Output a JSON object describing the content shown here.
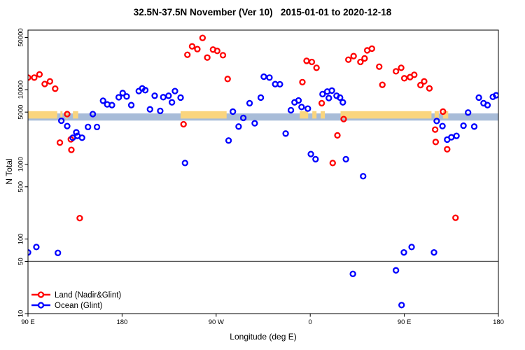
{
  "title": "32.5N-37.5N November (Ver 10)   2015-01-01 to 2020-12-18",
  "legend": {
    "entries": [
      {
        "label": "Land (Nadir&Glint)",
        "color": "#ff0000"
      },
      {
        "label": "Ocean (Glint)",
        "color": "#0000ff"
      }
    ]
  },
  "chart_data": {
    "type": "scatter",
    "title": "32.5N-37.5N November (Ver 10)   2015-01-01 to 2020-12-18",
    "xlabel": "Longitude (deg E)",
    "ylabel": "N Total",
    "y_scale": "log10",
    "ylim": [
      10,
      63000
    ],
    "y_ticks": [
      10,
      50,
      100,
      500,
      1000,
      5000,
      10000,
      50000
    ],
    "x_axis_span_deg": 450,
    "x_ticks": [
      {
        "deg": 0,
        "label": "90 E"
      },
      {
        "deg": 90,
        "label": "180"
      },
      {
        "deg": 180,
        "label": "90 W"
      },
      {
        "deg": 270,
        "label": "0"
      },
      {
        "deg": 360,
        "label": "90 E"
      },
      {
        "deg": 450,
        "label": "180"
      }
    ],
    "reference_line_y": 50,
    "reference_line_color": "#555555",
    "geo_band": {
      "description": "land/ocean strip along 32.5N-37.5N vs longitude",
      "ocean_color": "#a8bcd8",
      "land_color": "#fad57e",
      "ocean_value_range": [
        3850,
        4800
      ],
      "land_value_range": [
        4100,
        5150
      ],
      "land_segments_deg": [
        [
          0,
          28
        ],
        [
          31,
          33
        ],
        [
          36,
          38
        ],
        [
          43,
          48
        ],
        [
          146,
          190
        ],
        [
          260,
          268
        ],
        [
          272,
          276
        ],
        [
          280,
          284
        ],
        [
          299,
          386
        ],
        [
          389,
          393
        ],
        [
          397,
          402
        ]
      ]
    },
    "series": [
      {
        "name": "Land (Nadir&Glint)",
        "color": "#ff0000",
        "points": [
          [
            0,
            14500
          ],
          [
            6,
            14500
          ],
          [
            11,
            16000
          ],
          [
            16,
            11900
          ],
          [
            21,
            12900
          ],
          [
            26,
            10300
          ],
          [
            30.5,
            1950
          ],
          [
            37.5,
            4700
          ],
          [
            41,
            2160
          ],
          [
            41.5,
            1560
          ],
          [
            49.5,
            190
          ],
          [
            148.8,
            3440
          ],
          [
            152.5,
            29300
          ],
          [
            157,
            38000
          ],
          [
            162,
            34900
          ],
          [
            167,
            49300
          ],
          [
            171.5,
            26900
          ],
          [
            177,
            34400
          ],
          [
            181,
            33000
          ],
          [
            186.5,
            28900
          ],
          [
            191,
            13900
          ],
          [
            262.5,
            12600
          ],
          [
            266.5,
            24300
          ],
          [
            271.5,
            23500
          ],
          [
            276,
            19600
          ],
          [
            281,
            6580
          ],
          [
            291.5,
            1040
          ],
          [
            296,
            2440
          ],
          [
            302,
            4030
          ],
          [
            306.5,
            25200
          ],
          [
            311.5,
            28100
          ],
          [
            318,
            23500
          ],
          [
            322,
            26200
          ],
          [
            324.5,
            33600
          ],
          [
            329,
            35400
          ],
          [
            336,
            20300
          ],
          [
            339,
            11600
          ],
          [
            352,
            17600
          ],
          [
            357,
            19600
          ],
          [
            360,
            14200
          ],
          [
            365.5,
            14700
          ],
          [
            369.5,
            15800
          ],
          [
            375.5,
            11500
          ],
          [
            379,
            12900
          ],
          [
            384,
            10400
          ],
          [
            389.5,
            2915
          ],
          [
            390,
            1990
          ],
          [
            397,
            5080
          ],
          [
            401,
            1590
          ],
          [
            409,
            192
          ]
        ]
      },
      {
        "name": "Ocean (Glint)",
        "color": "#0000ff",
        "points": [
          [
            0,
            66
          ],
          [
            8,
            78
          ],
          [
            28.6,
            65
          ],
          [
            31.9,
            3830
          ],
          [
            37.5,
            3250
          ],
          [
            42.8,
            2270
          ],
          [
            46.2,
            2680
          ],
          [
            47.3,
            2400
          ],
          [
            51.7,
            2270
          ],
          [
            57.4,
            3160
          ],
          [
            62,
            4700
          ],
          [
            66,
            3160
          ],
          [
            71.8,
            7100
          ],
          [
            75.8,
            6340
          ],
          [
            80.3,
            6200
          ],
          [
            86.8,
            7900
          ],
          [
            90.6,
            9000
          ],
          [
            94.4,
            8100
          ],
          [
            98.8,
            6200
          ],
          [
            106,
            9560
          ],
          [
            109.3,
            10400
          ],
          [
            112.2,
            9840
          ],
          [
            116.7,
            5450
          ],
          [
            121.2,
            8280
          ],
          [
            126.5,
            5190
          ],
          [
            129.4,
            7930
          ],
          [
            134.5,
            8280
          ],
          [
            137.7,
            6760
          ],
          [
            140.6,
            9560
          ],
          [
            146,
            7820
          ],
          [
            150.2,
            1040
          ],
          [
            191.9,
            2080
          ],
          [
            196,
            5080
          ],
          [
            201.5,
            3200
          ],
          [
            206,
            4180
          ],
          [
            212,
            6580
          ],
          [
            216.9,
            3540
          ],
          [
            222.7,
            7820
          ],
          [
            225.6,
            14900
          ],
          [
            231,
            14500
          ],
          [
            236.5,
            11850
          ],
          [
            241,
            11800
          ],
          [
            246.5,
            2580
          ],
          [
            251.5,
            5300
          ],
          [
            255,
            6760
          ],
          [
            258.8,
            7160
          ],
          [
            261.7,
            5850
          ],
          [
            267.7,
            5570
          ],
          [
            270.6,
            1370
          ],
          [
            275.1,
            1170
          ],
          [
            281.8,
            8710
          ],
          [
            286.3,
            9420
          ],
          [
            287.8,
            7710
          ],
          [
            290.7,
            9710
          ],
          [
            295.2,
            8280
          ],
          [
            298.5,
            7820
          ],
          [
            301.2,
            6760
          ],
          [
            304.1,
            1170
          ],
          [
            310.8,
            34
          ],
          [
            320.6,
            692
          ],
          [
            352,
            38
          ],
          [
            357.4,
            13
          ],
          [
            359.6,
            66
          ],
          [
            367,
            78
          ],
          [
            388.4,
            66
          ],
          [
            391,
            3800
          ],
          [
            396.5,
            3250
          ],
          [
            401,
            2140
          ],
          [
            405,
            2300
          ],
          [
            409.9,
            2400
          ],
          [
            416.6,
            3290
          ],
          [
            421,
            4930
          ],
          [
            426.9,
            3200
          ],
          [
            431.3,
            7820
          ],
          [
            435.8,
            6580
          ],
          [
            439.6,
            6200
          ],
          [
            444.7,
            8000
          ],
          [
            447.8,
            8400
          ]
        ]
      }
    ],
    "legend_position": "bottom-left"
  }
}
